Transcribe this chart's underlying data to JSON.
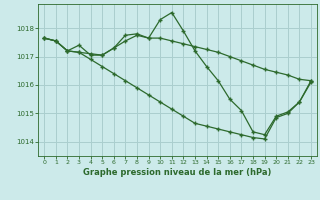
{
  "line1_x": [
    0,
    1,
    2,
    3,
    4,
    5,
    6,
    7,
    8,
    9,
    10,
    11,
    12,
    13,
    14,
    15,
    16,
    17,
    18,
    19,
    20,
    21,
    22,
    23
  ],
  "line1_y": [
    1017.65,
    1017.55,
    1017.2,
    1017.15,
    1017.1,
    1017.05,
    1017.3,
    1017.55,
    1017.75,
    1017.65,
    1017.65,
    1017.55,
    1017.45,
    1017.35,
    1017.25,
    1017.15,
    1017.0,
    1016.85,
    1016.7,
    1016.55,
    1016.45,
    1016.35,
    1016.2,
    1016.15
  ],
  "line2_x": [
    0,
    1,
    2,
    3,
    4,
    5,
    6,
    7,
    8,
    9,
    10,
    11,
    12,
    13,
    14,
    15,
    16,
    17,
    18,
    19,
    20,
    21,
    22,
    23
  ],
  "line2_y": [
    1017.65,
    1017.55,
    1017.2,
    1017.4,
    1017.05,
    1017.05,
    1017.3,
    1017.75,
    1017.8,
    1017.65,
    1018.3,
    1018.55,
    1017.9,
    1017.2,
    1016.65,
    1016.15,
    1015.5,
    1015.1,
    1014.35,
    1014.25,
    1014.9,
    1015.05,
    1015.4,
    1016.15
  ],
  "line3_x": [
    0,
    1,
    2,
    3,
    4,
    5,
    6,
    7,
    8,
    9,
    10,
    11,
    12,
    13,
    14,
    15,
    16,
    17,
    18,
    19,
    20,
    21,
    22,
    23
  ],
  "line3_y": [
    1017.65,
    1017.55,
    1017.2,
    1017.15,
    1016.9,
    1016.65,
    1016.4,
    1016.15,
    1015.9,
    1015.65,
    1015.4,
    1015.15,
    1014.9,
    1014.65,
    1014.55,
    1014.45,
    1014.35,
    1014.25,
    1014.15,
    1014.1,
    1014.85,
    1015.0,
    1015.4,
    1016.1
  ],
  "line_color": "#2d6a2d",
  "bg_color": "#cceaea",
  "grid_color": "#aacece",
  "xlabel": "Graphe pression niveau de la mer (hPa)",
  "xlabel_color": "#2d6a2d",
  "tick_color": "#2d6a2d",
  "ylim": [
    1013.5,
    1018.85
  ],
  "xlim": [
    -0.5,
    23.5
  ],
  "yticks": [
    1014,
    1015,
    1016,
    1017,
    1018
  ],
  "xticks": [
    0,
    1,
    2,
    3,
    4,
    5,
    6,
    7,
    8,
    9,
    10,
    11,
    12,
    13,
    14,
    15,
    16,
    17,
    18,
    19,
    20,
    21,
    22,
    23
  ]
}
